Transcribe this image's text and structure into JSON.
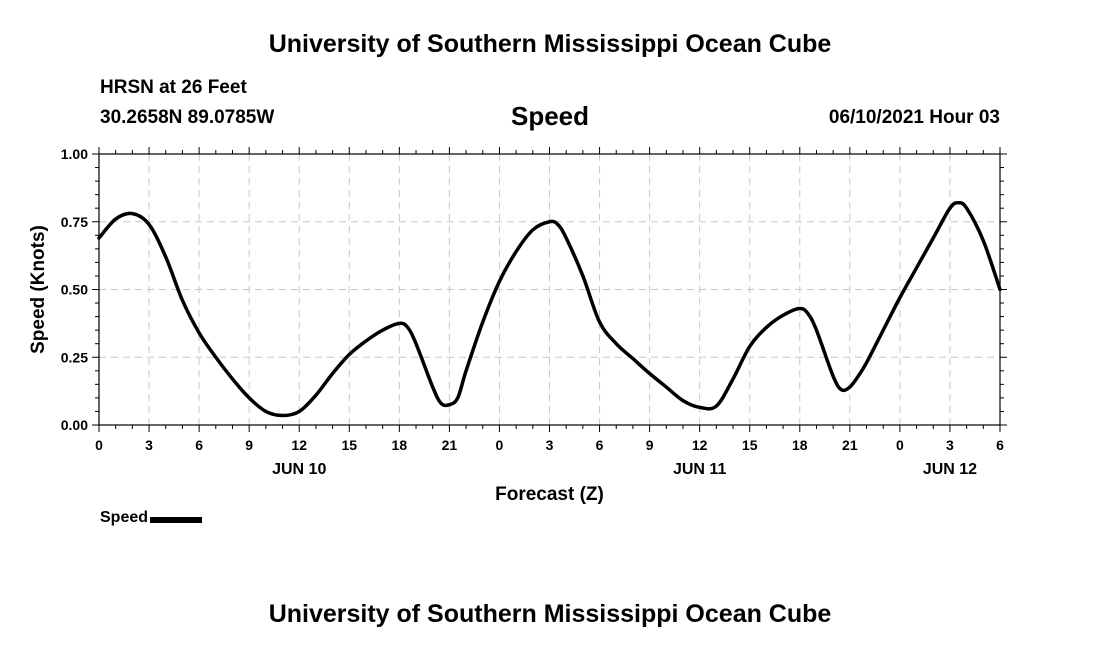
{
  "header": {
    "title_top": "University of Southern Mississippi Ocean Cube",
    "station": "HRSN at 26 Feet",
    "coords": "30.2658N  89.0785W",
    "chart_title": "Speed",
    "issued": "06/10/2021 Hour 03"
  },
  "footer": {
    "title_bottom": "University of Southern Mississippi Ocean Cube"
  },
  "legend": {
    "label": "Speed"
  },
  "colors": {
    "line": "#000000",
    "grid": "#c8c8c8"
  },
  "chart_data": {
    "type": "line",
    "title": "Speed",
    "xlabel": "Forecast (Z)",
    "ylabel": "Speed (Knots)",
    "xlim": [
      0,
      54
    ],
    "ylim": [
      0,
      1
    ],
    "grid": true,
    "legend_position": "bottom-left",
    "x_ticks": [
      {
        "x": 0,
        "label": "0"
      },
      {
        "x": 3,
        "label": "3"
      },
      {
        "x": 6,
        "label": "6"
      },
      {
        "x": 9,
        "label": "9"
      },
      {
        "x": 12,
        "label": "12"
      },
      {
        "x": 15,
        "label": "15"
      },
      {
        "x": 18,
        "label": "18"
      },
      {
        "x": 21,
        "label": "21"
      },
      {
        "x": 24,
        "label": "0"
      },
      {
        "x": 27,
        "label": "3"
      },
      {
        "x": 30,
        "label": "6"
      },
      {
        "x": 33,
        "label": "9"
      },
      {
        "x": 36,
        "label": "12"
      },
      {
        "x": 39,
        "label": "15"
      },
      {
        "x": 42,
        "label": "18"
      },
      {
        "x": 45,
        "label": "21"
      },
      {
        "x": 48,
        "label": "0"
      },
      {
        "x": 51,
        "label": "3"
      },
      {
        "x": 54,
        "label": "6"
      }
    ],
    "date_labels": [
      {
        "x": 12,
        "label": "JUN 10"
      },
      {
        "x": 36,
        "label": "JUN 11"
      },
      {
        "x": 51,
        "label": "JUN 12"
      }
    ],
    "y_ticks": [
      {
        "y": 0,
        "label": "0.00"
      },
      {
        "y": 0.25,
        "label": "0.25"
      },
      {
        "y": 0.5,
        "label": "0.50"
      },
      {
        "y": 0.75,
        "label": "0.75"
      },
      {
        "y": 1.0,
        "label": "1.00"
      }
    ],
    "series": [
      {
        "name": "Speed",
        "x": [
          0,
          1,
          2,
          3,
          4,
          5,
          6,
          7,
          8,
          9,
          10,
          11,
          12,
          13,
          14,
          15,
          16,
          17,
          18,
          18.5,
          19,
          20,
          20.5,
          21,
          21.5,
          22,
          23,
          24,
          25,
          26,
          27,
          27.5,
          28,
          29,
          30,
          31,
          32,
          33,
          34,
          35,
          36,
          37,
          38,
          39,
          40,
          41,
          42,
          42.5,
          43,
          44,
          44.5,
          45,
          45.5,
          46,
          47,
          48,
          49,
          50,
          51,
          51.5,
          52,
          53,
          54
        ],
        "y": [
          0.69,
          0.76,
          0.78,
          0.74,
          0.62,
          0.46,
          0.34,
          0.25,
          0.17,
          0.1,
          0.05,
          0.035,
          0.05,
          0.11,
          0.19,
          0.26,
          0.31,
          0.35,
          0.375,
          0.36,
          0.3,
          0.14,
          0.08,
          0.075,
          0.1,
          0.2,
          0.38,
          0.53,
          0.64,
          0.72,
          0.75,
          0.74,
          0.69,
          0.55,
          0.38,
          0.3,
          0.245,
          0.19,
          0.14,
          0.09,
          0.065,
          0.07,
          0.17,
          0.29,
          0.36,
          0.405,
          0.43,
          0.41,
          0.35,
          0.18,
          0.13,
          0.14,
          0.18,
          0.23,
          0.35,
          0.47,
          0.58,
          0.69,
          0.8,
          0.82,
          0.8,
          0.68,
          0.5
        ]
      }
    ]
  }
}
